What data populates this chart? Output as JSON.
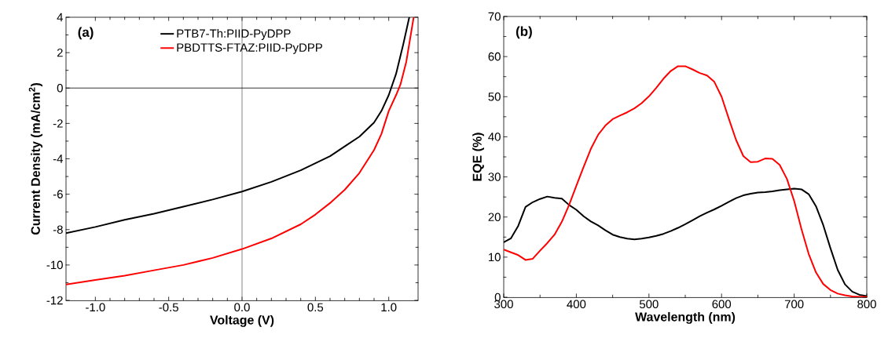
{
  "chart_data": [
    {
      "type": "line",
      "xlabel": "Voltage (V)",
      "ylabel": "Current Density (mA/cm$^{2}$)",
      "annotations": [
        "(a)"
      ],
      "xlim": [
        -1.2,
        1.2
      ],
      "ylim": [
        -12,
        4
      ],
      "xticks": [
        {
          "value": -1,
          "label": "-1.0"
        },
        {
          "value": -0.5,
          "label": "-0.5"
        },
        {
          "value": 0,
          "label": "0.0"
        },
        {
          "value": 0.5,
          "label": "0.5"
        },
        {
          "value": 1,
          "label": "1.0"
        }
      ],
      "yticks": [
        -12,
        -10,
        -8,
        -6,
        -4,
        -2,
        0,
        2,
        4
      ],
      "grid": false,
      "legend": "top",
      "ref_lines": [
        {
          "axis": "x",
          "value": 0,
          "color": "#666666"
        },
        {
          "axis": "y",
          "value": 0,
          "color": "#000000"
        }
      ],
      "series": [
        {
          "name": "PTB7-Th:PIID-PyDPP",
          "color": "#000000",
          "x": [
            -1.2,
            -1.0,
            -0.8,
            -0.6,
            -0.4,
            -0.2,
            0,
            0.2,
            0.4,
            0.5,
            0.6,
            0.7,
            0.8,
            0.9,
            0.95,
            1.0,
            1.05,
            1.1,
            1.14
          ],
          "values": [
            -8.2,
            -7.85,
            -7.45,
            -7.1,
            -6.7,
            -6.3,
            -5.85,
            -5.3,
            -4.65,
            -4.25,
            -3.85,
            -3.3,
            -2.75,
            -1.95,
            -1.3,
            -0.4,
            0.8,
            2.5,
            4
          ]
        },
        {
          "name": "PBDTTS-FTAZ:PIID-PyDPP",
          "color": "#ff0000",
          "x": [
            -1.2,
            -1.0,
            -0.8,
            -0.6,
            -0.4,
            -0.2,
            0,
            0.2,
            0.4,
            0.5,
            0.6,
            0.7,
            0.8,
            0.9,
            0.95,
            1.0,
            1.05,
            1.08,
            1.12,
            1.17
          ],
          "values": [
            -11.1,
            -10.85,
            -10.6,
            -10.3,
            -10.0,
            -9.6,
            -9.1,
            -8.5,
            -7.7,
            -7.15,
            -6.5,
            -5.75,
            -4.8,
            -3.5,
            -2.6,
            -1.3,
            -0.4,
            0.2,
            1.5,
            4
          ]
        }
      ]
    },
    {
      "type": "line",
      "xlabel": "Wavelength (nm)",
      "ylabel": "EQE (%)",
      "annotations": [
        "(b)"
      ],
      "xlim": [
        300,
        800
      ],
      "ylim": [
        0,
        70
      ],
      "xticks": [
        300,
        400,
        500,
        600,
        700,
        800
      ],
      "yticks": [
        0,
        10,
        20,
        30,
        40,
        50,
        60,
        70
      ],
      "grid": false,
      "x": [
        300,
        310,
        320,
        330,
        340,
        350,
        360,
        370,
        380,
        390,
        400,
        410,
        420,
        430,
        440,
        450,
        460,
        470,
        480,
        490,
        500,
        510,
        520,
        530,
        540,
        550,
        560,
        570,
        580,
        590,
        600,
        610,
        620,
        630,
        640,
        650,
        660,
        670,
        680,
        690,
        700,
        710,
        720,
        730,
        740,
        750,
        760,
        770,
        780,
        790,
        800
      ],
      "series": [
        {
          "color": "#000000",
          "values": [
            13.7,
            14.7,
            17.8,
            22.5,
            23.7,
            24.5,
            25.1,
            24.8,
            24.6,
            23.0,
            21.8,
            20.2,
            18.9,
            17.9,
            16.7,
            15.6,
            15.0,
            14.6,
            14.4,
            14.6,
            14.9,
            15.3,
            15.8,
            16.5,
            17.3,
            18.2,
            19.2,
            20.2,
            21.1,
            21.9,
            22.8,
            23.8,
            24.7,
            25.4,
            25.8,
            26.1,
            26.2,
            26.4,
            26.7,
            26.9,
            27.1,
            26.9,
            25.7,
            22.7,
            18.0,
            12.2,
            6.8,
            3.2,
            1.4,
            0.6,
            0.3
          ]
        },
        {
          "color": "#ff0000",
          "values": [
            11.9,
            11.2,
            10.5,
            9.3,
            9.6,
            11.6,
            13.5,
            15.6,
            18.8,
            23.0,
            27.8,
            32.5,
            37.0,
            40.5,
            42.8,
            44.4,
            45.3,
            46.1,
            47.1,
            48.4,
            50.1,
            52.2,
            54.5,
            56.4,
            57.6,
            57.6,
            56.8,
            55.9,
            55.3,
            53.7,
            50.0,
            44.5,
            39.2,
            35.2,
            33.7,
            33.8,
            34.6,
            34.5,
            33.0,
            29.5,
            24.0,
            17.0,
            10.8,
            6.2,
            3.3,
            1.8,
            0.9,
            0.5,
            0.2,
            0.1,
            0.1
          ]
        }
      ]
    }
  ]
}
